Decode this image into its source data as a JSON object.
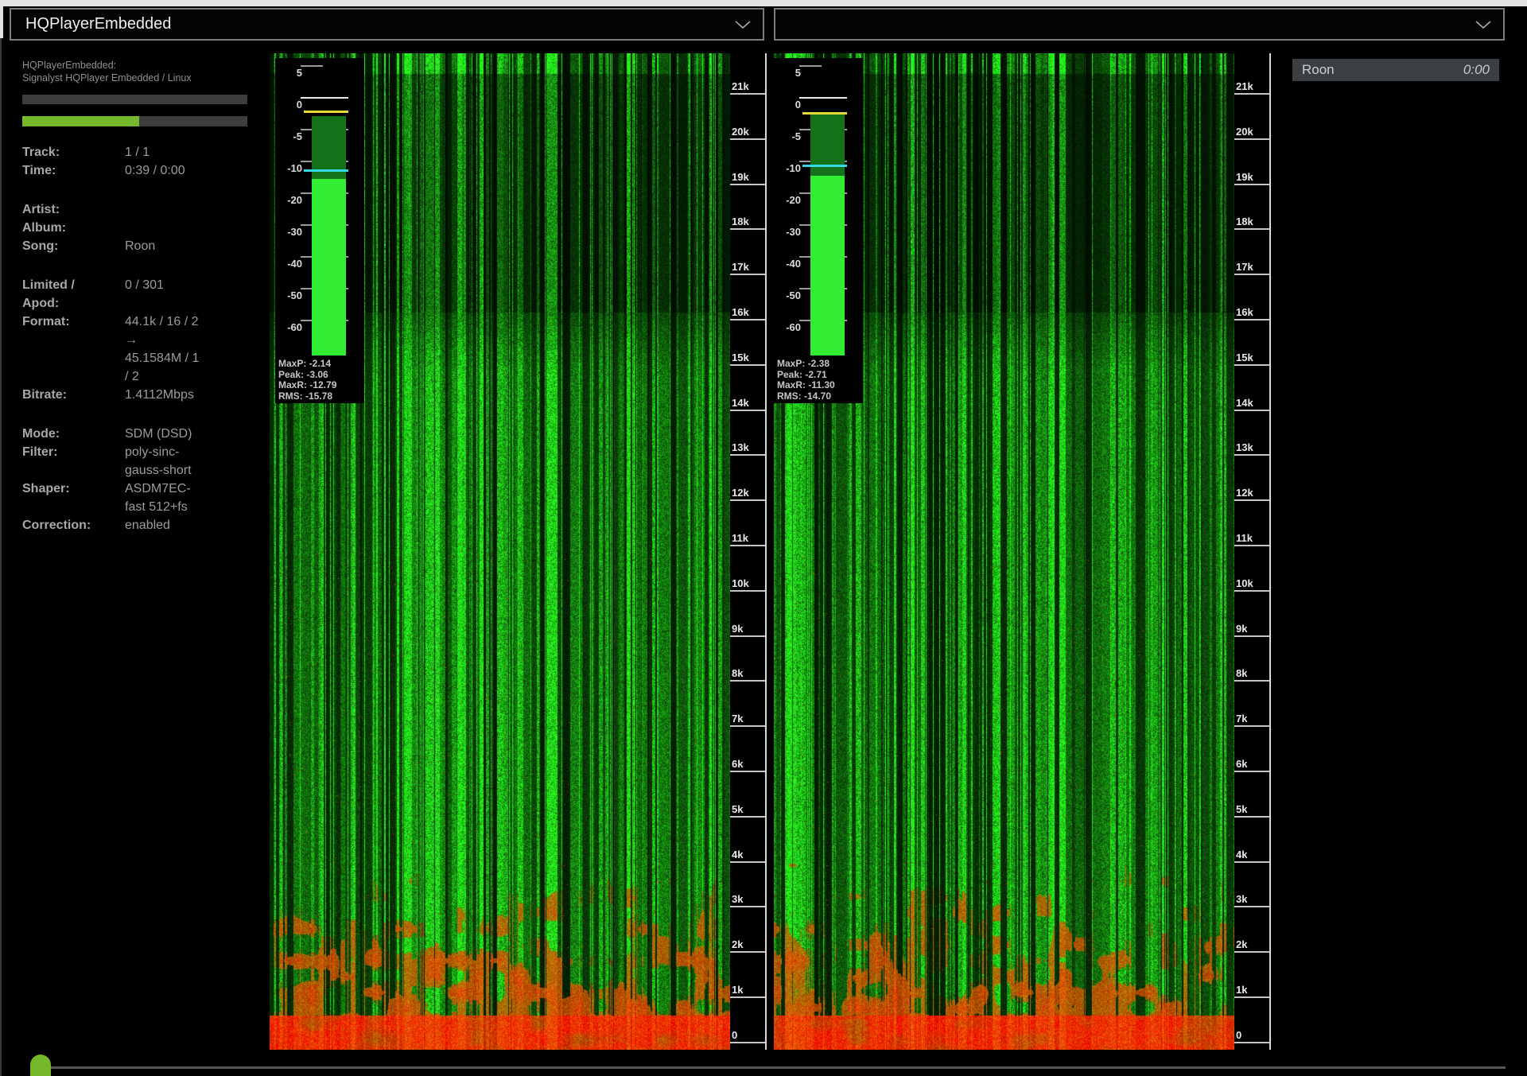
{
  "header": {
    "zone_selector_value": "HQPlayerEmbedded",
    "output_selector_value": ""
  },
  "status_panel": {
    "device_name": "HQPlayerEmbedded:",
    "device_description": "Signalyst HQPlayer Embedded / Linux",
    "buffer_bar": {
      "fill_percent": 0
    },
    "position_bar": {
      "fill_percent": 52,
      "fill_color": "#75b82c"
    },
    "groups": [
      [
        {
          "label": "Track:",
          "value": "1 / 1"
        },
        {
          "label": "Time:",
          "value": "0:39 / 0:00"
        }
      ],
      [
        {
          "label": "Artist:",
          "value": ""
        },
        {
          "label": "Album:",
          "value": ""
        },
        {
          "label": "Song:",
          "value": "Roon"
        }
      ],
      [
        {
          "label": "Limited / Apod:",
          "value": "0 / 301"
        },
        {
          "label": "Format:",
          "value": "44.1k / 16 / 2\n→\n45.1584M / 1\n/ 2"
        },
        {
          "label": "Bitrate:",
          "value": "1.4112Mbps"
        }
      ],
      [
        {
          "label": "Mode:",
          "value": "SDM (DSD)"
        },
        {
          "label": "Filter:",
          "value": "poly-sinc-\ngauss-short"
        },
        {
          "label": "Shaper:",
          "value": "ASDM7EC-\nfast 512+fs"
        },
        {
          "label": "Correction:",
          "value": "enabled"
        }
      ]
    ]
  },
  "playlist": {
    "items": [
      {
        "title": "Roon",
        "time": "0:00"
      }
    ]
  },
  "meter_scale_labels": [
    "5",
    "0",
    "-5",
    "-10",
    "-20",
    "-30",
    "-40",
    "-50",
    "-60"
  ],
  "freq_scale_labels": [
    "21k",
    "20k",
    "19k",
    "18k",
    "17k",
    "16k",
    "15k",
    "14k",
    "13k",
    "12k",
    "11k",
    "10k",
    "9k",
    "8k",
    "7k",
    "6k",
    "5k",
    "4k",
    "3k",
    "2k",
    "1k",
    "0"
  ],
  "channels": [
    {
      "meter": [
        {
          "label": "MaxP",
          "value": "-2.14"
        },
        {
          "label": "Peak",
          "value": "-3.06"
        },
        {
          "label": "MaxR",
          "value": "-12.79"
        },
        {
          "label": "RMS",
          "value": "-15.78"
        }
      ]
    },
    {
      "meter": [
        {
          "label": "MaxP",
          "value": "-2.38"
        },
        {
          "label": "Peak",
          "value": "-2.71"
        },
        {
          "label": "MaxR",
          "value": "-11.30"
        },
        {
          "label": "RMS",
          "value": "-14.70"
        }
      ]
    }
  ],
  "colors": {
    "accent_green": "#75b82c",
    "meter_peak_green": "#147319",
    "meter_rms_green": "#32ee32",
    "max_peak_marker_yellow": "#e6d835",
    "max_rms_marker_cyan": "#35d8e6"
  }
}
